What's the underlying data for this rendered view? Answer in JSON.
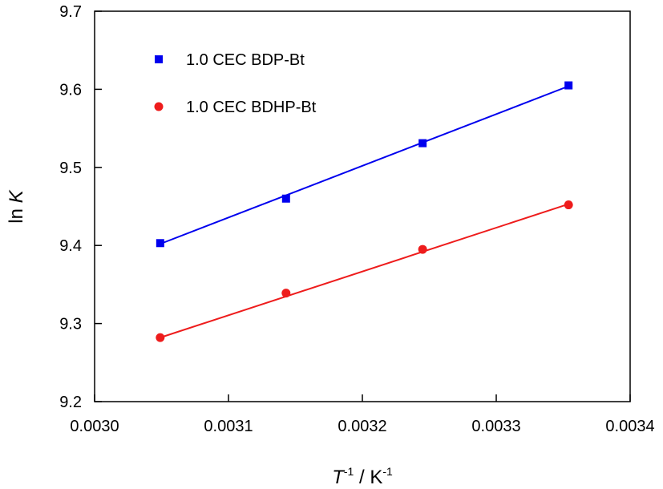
{
  "chart_data": {
    "type": "scatter",
    "xlabel_parts": {
      "var": "T",
      "var_exp": "-1",
      "sep": " / ",
      "unit": "K",
      "unit_exp": "-1"
    },
    "ylabel_parts": {
      "prefix": "ln ",
      "var": "K"
    },
    "xlim": [
      0.003,
      0.0034
    ],
    "ylim": [
      9.2,
      9.7
    ],
    "xticks": [
      "0.0030",
      "0.0031",
      "0.0032",
      "0.0033",
      "0.0034"
    ],
    "yticks": [
      "9.2",
      "9.3",
      "9.4",
      "9.5",
      "9.6",
      "9.7"
    ],
    "grid": false,
    "legend_position": "top-left",
    "series": [
      {
        "name": "1.0 CEC BDP-Bt",
        "marker": "square",
        "color": "#0000ee",
        "x": [
          0.003049,
          0.003143,
          0.003245,
          0.003354
        ],
        "y": [
          9.403,
          9.46,
          9.531,
          9.605
        ],
        "fit": {
          "x": [
            0.003049,
            0.003354
          ],
          "y": [
            9.402,
            9.604
          ]
        }
      },
      {
        "name": "1.0 CEC BDHP-Bt",
        "marker": "circle",
        "color": "#ee1c1c",
        "x": [
          0.003049,
          0.003143,
          0.003245,
          0.003354
        ],
        "y": [
          9.282,
          9.339,
          9.395,
          9.452
        ],
        "fit": {
          "x": [
            0.003049,
            0.003354
          ],
          "y": [
            9.282,
            9.453
          ]
        }
      }
    ]
  }
}
